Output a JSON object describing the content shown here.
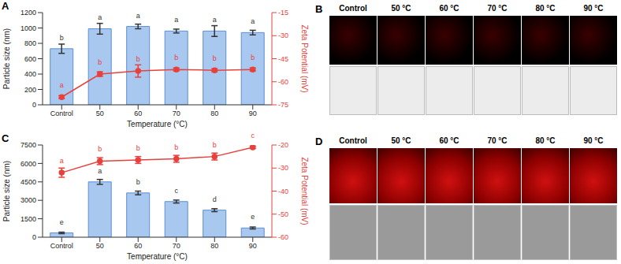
{
  "chart_data": [
    {
      "type": "bar",
      "panel_label": "A",
      "x_label": "Temperature (°C)",
      "y_label": "Particle size (nm)",
      "y2_label": "Zeta Potential (mV)",
      "categories": [
        "Control",
        "50",
        "60",
        "70",
        "80",
        "90"
      ],
      "series": [
        {
          "type": "bar",
          "color": "#a9c8f0",
          "values": [
            730,
            990,
            1020,
            960,
            960,
            940
          ],
          "errors": [
            60,
            70,
            30,
            25,
            70,
            30
          ],
          "annotations": [
            "b",
            "a",
            "a",
            "a",
            "a",
            "a"
          ]
        },
        {
          "type": "line",
          "axis": "y2",
          "color": "#e8413c",
          "marker": "circle",
          "values": [
            -70,
            -55,
            -53,
            -52,
            -52.5,
            -52
          ],
          "errors": [
            1,
            1.5,
            4,
            1,
            1,
            1
          ],
          "annotations": [
            "a",
            "b",
            "b",
            "b",
            "b",
            "b"
          ]
        }
      ],
      "ylim": [
        0,
        1200
      ],
      "yticks": [
        0,
        200,
        400,
        600,
        800,
        1000,
        1200
      ],
      "y2lim": [
        -75,
        -15
      ],
      "y2ticks": [
        -75,
        -60,
        -45,
        -30,
        -15
      ]
    },
    {
      "type": "bar",
      "panel_label": "C",
      "x_label": "Temperature (°C)",
      "y_label": "Particle size (nm)",
      "y2_label": "Zeta Potential (mV)",
      "categories": [
        "Control",
        "50",
        "60",
        "70",
        "80",
        "90"
      ],
      "series": [
        {
          "type": "bar",
          "color": "#a9c8f0",
          "values": [
            350,
            4500,
            3600,
            2900,
            2200,
            750
          ],
          "errors": [
            60,
            200,
            150,
            120,
            120,
            80
          ],
          "annotations": [
            "e",
            "a",
            "b",
            "c",
            "d",
            "e"
          ]
        },
        {
          "type": "line",
          "axis": "y2",
          "color": "#e8413c",
          "marker": "circle",
          "values": [
            -32,
            -27,
            -26.5,
            -26,
            -25,
            -21
          ],
          "errors": [
            2,
            1.5,
            1.5,
            1.5,
            1.5,
            0.5
          ],
          "annotations": [
            "a",
            "b",
            "b",
            "b",
            "b",
            "c"
          ]
        }
      ],
      "ylim": [
        0,
        7500
      ],
      "yticks": [
        0,
        1500,
        3000,
        4500,
        6000,
        7500
      ],
      "y2lim": [
        -60,
        -20
      ],
      "y2ticks": [
        -60,
        -50,
        -40,
        -30,
        -20
      ]
    }
  ],
  "image_panels": [
    {
      "panel_label": "B",
      "columns": [
        "Control",
        "50 °C",
        "60 °C",
        "70 °C",
        "80 °C",
        "90 °C"
      ]
    },
    {
      "panel_label": "D",
      "columns": [
        "Control",
        "50 °C",
        "60 °C",
        "70 °C",
        "80 °C",
        "90 °C"
      ]
    }
  ]
}
